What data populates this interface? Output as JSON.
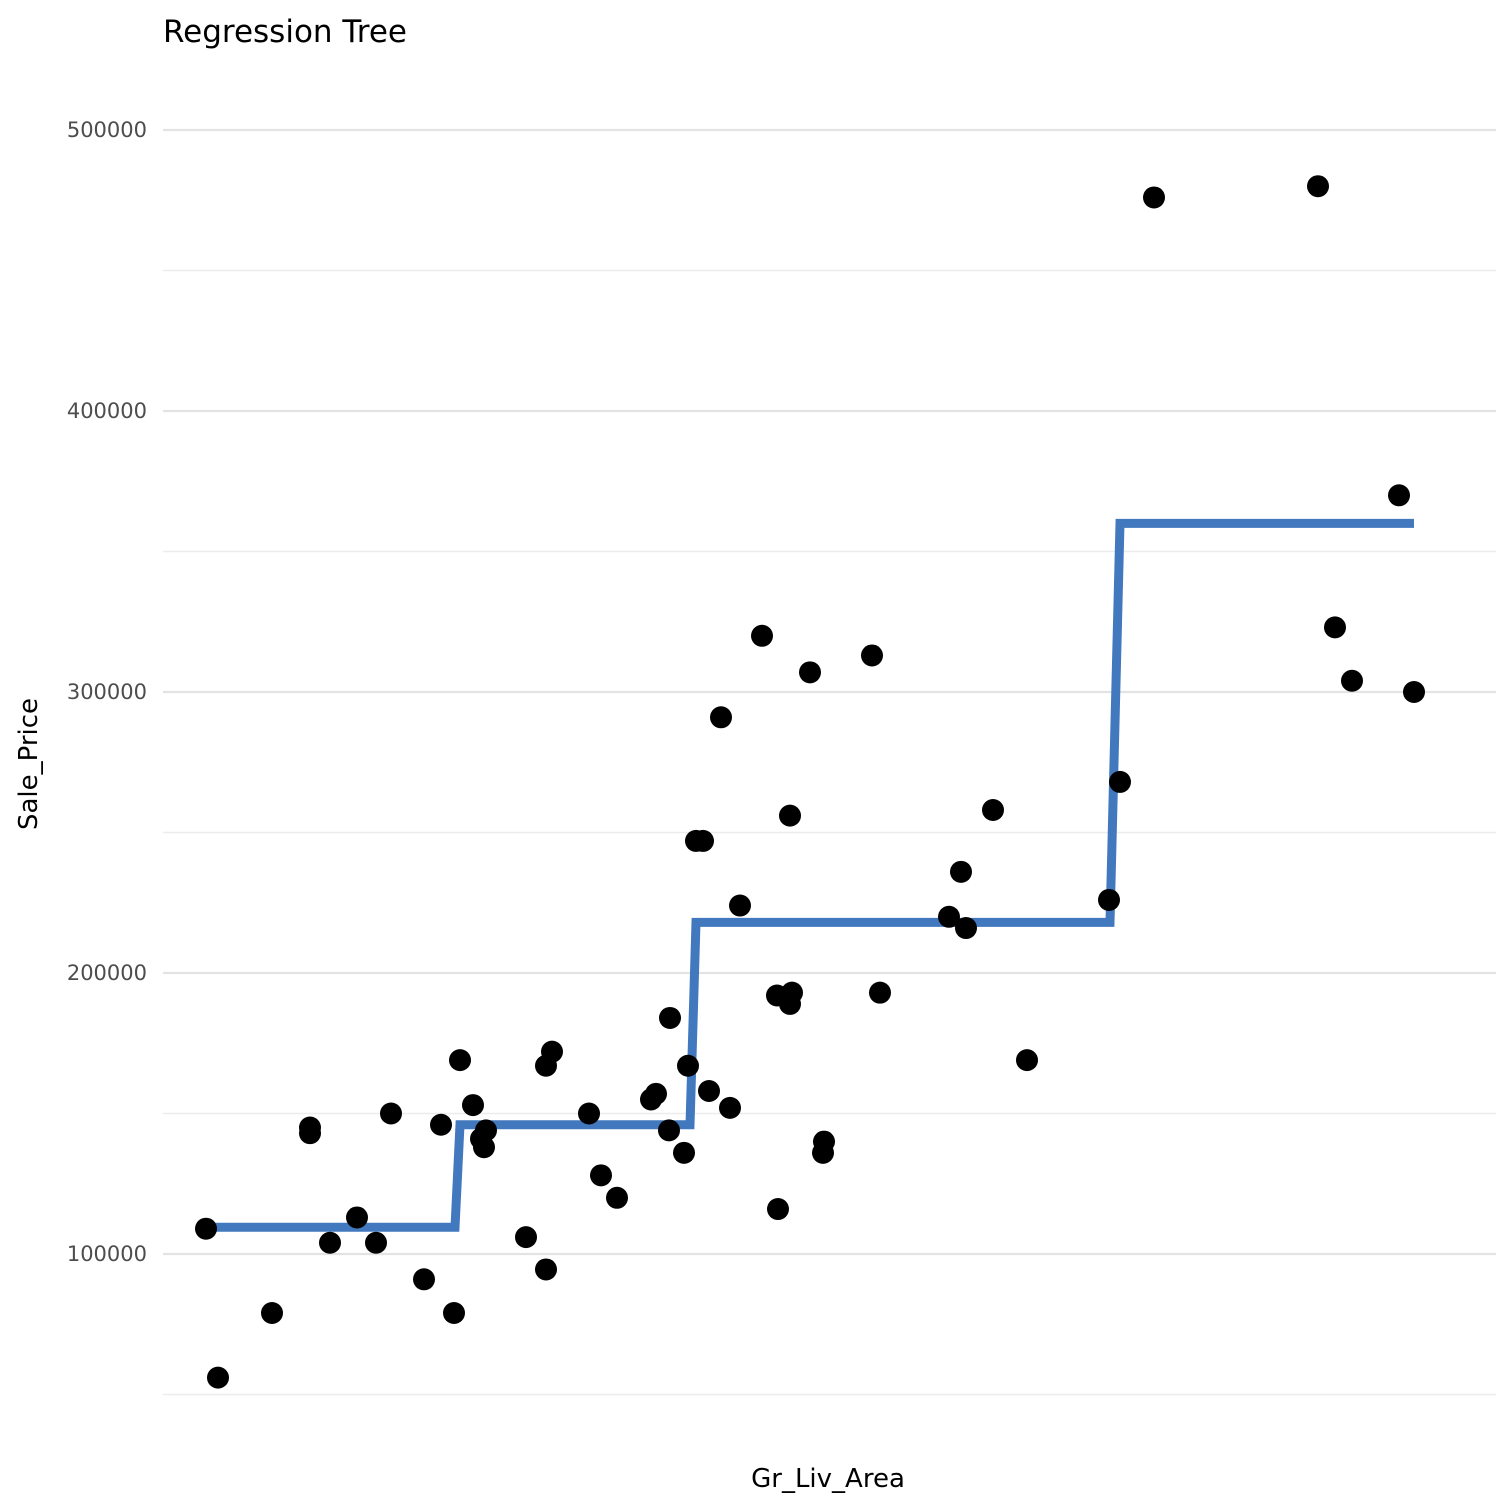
{
  "chart_data": {
    "type": "scatter",
    "title": "Regression Tree",
    "xlabel": "Gr_Liv_Area",
    "ylabel": "Sale_Price",
    "x_tick_labels": false,
    "ylim": [
      50000,
      520000
    ],
    "y_ticks": [
      100000,
      200000,
      300000,
      400000,
      500000
    ],
    "y_minor_ticks": [
      50000,
      150000,
      250000,
      350000,
      450000
    ],
    "grid": true,
    "colors": {
      "points": "#000000",
      "fit_line": "#4178be",
      "grid": "#e3e3e3",
      "tick_text": "#4d4d4d"
    },
    "points": [
      {
        "x": 206,
        "y": 109000
      },
      {
        "x": 218,
        "y": 56000
      },
      {
        "x": 272,
        "y": 79000
      },
      {
        "x": 310,
        "y": 145000
      },
      {
        "x": 310,
        "y": 143000
      },
      {
        "x": 330,
        "y": 104000
      },
      {
        "x": 357,
        "y": 113000
      },
      {
        "x": 376,
        "y": 104000
      },
      {
        "x": 391,
        "y": 150000
      },
      {
        "x": 424,
        "y": 91000
      },
      {
        "x": 441,
        "y": 146000
      },
      {
        "x": 454,
        "y": 79000
      },
      {
        "x": 460,
        "y": 169000
      },
      {
        "x": 473,
        "y": 153000
      },
      {
        "x": 481,
        "y": 141000
      },
      {
        "x": 486,
        "y": 144000
      },
      {
        "x": 484,
        "y": 138000
      },
      {
        "x": 526,
        "y": 106000
      },
      {
        "x": 546,
        "y": 94500
      },
      {
        "x": 546,
        "y": 167000
      },
      {
        "x": 552,
        "y": 172000
      },
      {
        "x": 589,
        "y": 150000
      },
      {
        "x": 601,
        "y": 128000
      },
      {
        "x": 617,
        "y": 120000
      },
      {
        "x": 651,
        "y": 155000
      },
      {
        "x": 656,
        "y": 157000
      },
      {
        "x": 669,
        "y": 144000
      },
      {
        "x": 670,
        "y": 184000
      },
      {
        "x": 684,
        "y": 136000
      },
      {
        "x": 688,
        "y": 167000
      },
      {
        "x": 696,
        "y": 247000
      },
      {
        "x": 703,
        "y": 247000
      },
      {
        "x": 709,
        "y": 158000
      },
      {
        "x": 721,
        "y": 291000
      },
      {
        "x": 730,
        "y": 152000
      },
      {
        "x": 740,
        "y": 224000
      },
      {
        "x": 762,
        "y": 320000
      },
      {
        "x": 777,
        "y": 192000
      },
      {
        "x": 778,
        "y": 116000
      },
      {
        "x": 790,
        "y": 189000
      },
      {
        "x": 790,
        "y": 256000
      },
      {
        "x": 792,
        "y": 193000
      },
      {
        "x": 810,
        "y": 307000
      },
      {
        "x": 823,
        "y": 136000
      },
      {
        "x": 824,
        "y": 140000
      },
      {
        "x": 872,
        "y": 313000
      },
      {
        "x": 880,
        "y": 193000
      },
      {
        "x": 949,
        "y": 220000
      },
      {
        "x": 961,
        "y": 236000
      },
      {
        "x": 966,
        "y": 216000
      },
      {
        "x": 993,
        "y": 258000
      },
      {
        "x": 1027,
        "y": 169000
      },
      {
        "x": 1109,
        "y": 226000
      },
      {
        "x": 1120,
        "y": 268000
      },
      {
        "x": 1154,
        "y": 476000
      },
      {
        "x": 1318,
        "y": 480000
      },
      {
        "x": 1335,
        "y": 323000
      },
      {
        "x": 1352,
        "y": 304000
      },
      {
        "x": 1399,
        "y": 370000
      },
      {
        "x": 1414,
        "y": 300000
      }
    ],
    "fit_step": [
      {
        "x": 206,
        "y": 109500
      },
      {
        "x": 455,
        "y": 109500
      },
      {
        "x": 460,
        "y": 146000
      },
      {
        "x": 690,
        "y": 146000
      },
      {
        "x": 696,
        "y": 218000
      },
      {
        "x": 1110,
        "y": 218000
      },
      {
        "x": 1120,
        "y": 360000
      },
      {
        "x": 1414,
        "y": 360000
      }
    ]
  }
}
